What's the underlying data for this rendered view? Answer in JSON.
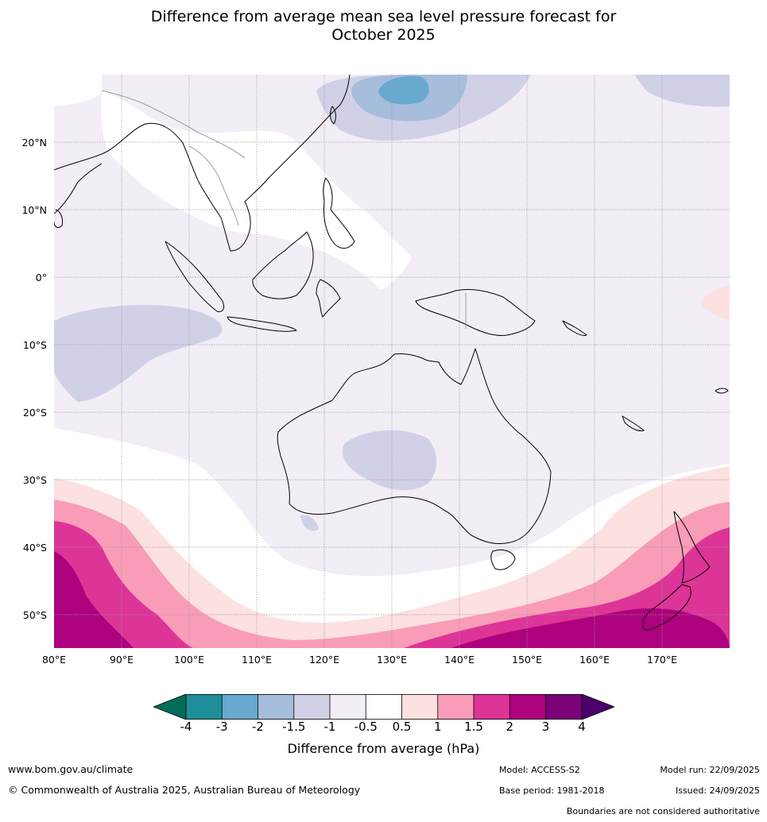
{
  "title": {
    "line1": "Difference from average mean sea level pressure forecast for",
    "line2": "October 2025"
  },
  "map": {
    "lat_labels": [
      "20°N",
      "10°N",
      "0°",
      "10°S",
      "20°S",
      "30°S",
      "40°S",
      "50°S"
    ],
    "lon_labels": [
      "80°E",
      "90°E",
      "100°E",
      "110°E",
      "120°E",
      "130°E",
      "140°E",
      "150°E",
      "160°E",
      "170°E"
    ],
    "land_outline_color": "#000000",
    "border_color": "#888888"
  },
  "colorbar": {
    "ticks": [
      "-4",
      "-3",
      "-2",
      "-1.5",
      "-1",
      "-0.5",
      "0.5",
      "1",
      "1.5",
      "2",
      "3",
      "4"
    ],
    "colors": {
      "below": "#016c59",
      "m4_m3": "#1e8f9a",
      "m3_m2": "#67a9cf",
      "m2_m15": "#a6bddb",
      "m15_m1": "#d0d1e6",
      "m1_m05": "#f3edf6",
      "m05_05": "#ffffff",
      "p05_1": "#fde0e0",
      "p1_15": "#f99cb8",
      "p15_2": "#dd3497",
      "p2_3": "#ae017e",
      "p3_4": "#7a0177",
      "above": "#49006a"
    },
    "label": "Difference from average (hPa)"
  },
  "footer": {
    "website": "www.bom.gov.au/climate",
    "copyright": "© Commonwealth of Australia 2025, Australian Bureau of Meteorology",
    "model": "Model: ACCESS-S2",
    "base_period": "Base period: 1981-2018",
    "model_run": "Model run: 22/09/2025",
    "issued": "Issued: 24/09/2025",
    "disclaimer": "Boundaries are not considered authoritative"
  }
}
